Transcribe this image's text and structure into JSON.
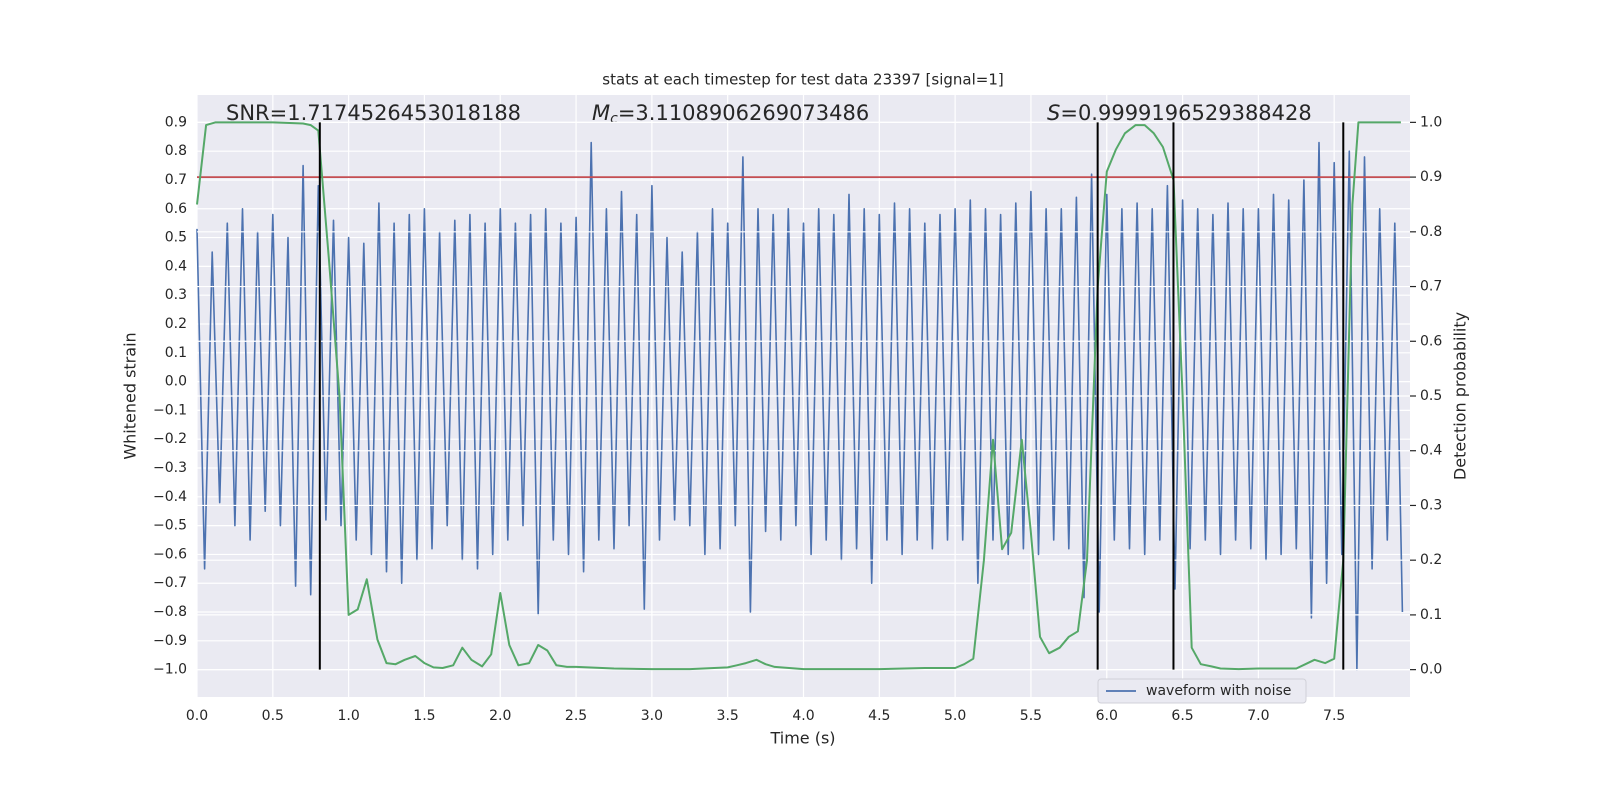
{
  "chart_data": {
    "type": "line",
    "title": "stats at each timestep for test data 23397 [signal=1]",
    "xlabel": "Time (s)",
    "ylabel": "Whitened strain",
    "y2label": "Detection probability",
    "annotations": {
      "snr": "SNR=1.7174526453018188",
      "mc": {
        "symbol": "M",
        "subscript": "c",
        "text": "=3.1108906269073486"
      },
      "s": {
        "symbol": "S",
        "text": "=0.9999196529388428"
      }
    },
    "xlim": [
      0,
      8
    ],
    "xticks": [
      {
        "value": 0,
        "label": "0.0"
      },
      0.5,
      {
        "value": 1,
        "label": "1.0"
      },
      1.5,
      {
        "value": 2,
        "label": "2.0"
      },
      2.5,
      {
        "value": 3,
        "label": "3.0"
      },
      3.5,
      {
        "value": 4,
        "label": "4.0"
      },
      4.5,
      {
        "value": 5,
        "label": "5.0"
      },
      5.5,
      {
        "value": 6,
        "label": "6.0"
      },
      6.5,
      {
        "value": 7,
        "label": "7.0"
      },
      7.5
    ],
    "ylim": [
      -1.095,
      0.995
    ],
    "yticks": [
      {
        "value": -1.0,
        "label": "−1.0"
      },
      {
        "value": -0.9,
        "label": "−0.9"
      },
      {
        "value": -0.8,
        "label": "−0.8"
      },
      {
        "value": -0.7,
        "label": "−0.7"
      },
      {
        "value": -0.6,
        "label": "−0.6"
      },
      {
        "value": -0.5,
        "label": "−0.5"
      },
      {
        "value": -0.4,
        "label": "−0.4"
      },
      {
        "value": -0.3,
        "label": "−0.3"
      },
      {
        "value": -0.2,
        "label": "−0.2"
      },
      {
        "value": -0.1,
        "label": "−0.1"
      },
      {
        "value": 0,
        "label": "0.0"
      },
      0.1,
      0.2,
      0.3,
      0.4,
      0.5,
      0.6,
      0.7,
      0.8,
      0.9
    ],
    "y2lim": [
      -0.05,
      1.05
    ],
    "y2ticks": [
      {
        "value": 0,
        "label": "0.0"
      },
      0.1,
      0.2,
      0.3,
      0.4,
      0.5,
      0.6,
      0.7,
      0.8,
      0.9,
      {
        "value": 1,
        "label": "1.0"
      }
    ],
    "grid": true,
    "legend": "lower right",
    "series": [
      {
        "name": "waveform with noise",
        "color": "#4c72b0",
        "x": [
          0,
          0.05,
          0.1,
          0.15,
          0.2,
          0.25,
          0.3,
          0.35,
          0.4,
          0.45,
          0.5,
          0.55,
          0.6,
          0.65,
          0.7,
          0.75,
          0.8,
          0.85,
          0.9,
          0.95,
          1,
          1.05,
          1.1,
          1.15,
          1.2,
          1.25,
          1.3,
          1.35,
          1.4,
          1.45,
          1.5,
          1.55,
          1.6,
          1.65,
          1.7,
          1.75,
          1.8,
          1.85,
          1.9,
          1.95,
          2,
          2.05,
          2.1,
          2.15,
          2.2,
          2.25,
          2.3,
          2.35,
          2.4,
          2.45,
          2.5,
          2.55,
          2.6,
          2.65,
          2.7,
          2.75,
          2.8,
          2.85,
          2.9,
          2.95,
          3,
          3.05,
          3.1,
          3.15,
          3.2,
          3.25,
          3.3,
          3.35,
          3.4,
          3.45,
          3.5,
          3.55,
          3.6,
          3.65,
          3.7,
          3.75,
          3.8,
          3.85,
          3.9,
          3.95,
          4,
          4.05,
          4.1,
          4.15,
          4.2,
          4.25,
          4.3,
          4.35,
          4.4,
          4.45,
          4.5,
          4.55,
          4.6,
          4.65,
          4.7,
          4.75,
          4.8,
          4.85,
          4.9,
          4.95,
          5,
          5.05,
          5.1,
          5.15,
          5.2,
          5.25,
          5.3,
          5.35,
          5.4,
          5.45,
          5.5,
          5.55,
          5.6,
          5.65,
          5.7,
          5.75,
          5.8,
          5.85,
          5.9,
          5.95,
          6,
          6.05,
          6.1,
          6.15,
          6.2,
          6.25,
          6.3,
          6.35,
          6.4,
          6.45,
          6.5,
          6.55,
          6.6,
          6.65,
          6.7,
          6.75,
          6.8,
          6.85,
          6.9,
          6.95,
          7,
          7.05,
          7.1,
          7.15,
          7.2,
          7.25,
          7.3,
          7.35,
          7.4,
          7.45,
          7.5,
          7.55,
          7.6,
          7.65,
          7.7,
          7.75,
          7.8,
          7.85,
          7.9,
          7.95
        ],
        "values": [
          0.53,
          -0.65,
          0.45,
          -0.42,
          0.55,
          -0.5,
          0.6,
          -0.55,
          0.52,
          -0.45,
          0.58,
          -0.5,
          0.5,
          -0.71,
          0.75,
          -0.74,
          0.68,
          -0.48,
          0.56,
          -0.5,
          0.5,
          -0.55,
          0.48,
          -0.6,
          0.62,
          -0.66,
          0.55,
          -0.7,
          0.58,
          -0.62,
          0.6,
          -0.58,
          0.52,
          -0.5,
          0.56,
          -0.62,
          0.58,
          -0.65,
          0.55,
          -0.6,
          0.6,
          -0.55,
          0.55,
          -0.5,
          0.58,
          -0.81,
          0.6,
          -0.55,
          0.55,
          -0.6,
          0.57,
          -0.66,
          0.83,
          -0.55,
          0.6,
          -0.58,
          0.66,
          -0.5,
          0.58,
          -0.79,
          0.68,
          -0.55,
          0.5,
          -0.48,
          0.45,
          -0.5,
          0.52,
          -0.6,
          0.6,
          -0.58,
          0.55,
          -0.5,
          0.78,
          -0.8,
          0.6,
          -0.52,
          0.58,
          -0.55,
          0.6,
          -0.5,
          0.55,
          -0.6,
          0.6,
          -0.55,
          0.58,
          -0.62,
          0.65,
          -0.58,
          0.6,
          -0.7,
          0.58,
          -0.55,
          0.62,
          -0.6,
          0.6,
          -0.55,
          0.55,
          -0.58,
          0.58,
          -0.55,
          0.6,
          -0.55,
          0.63,
          -0.7,
          0.6,
          -0.55,
          0.58,
          -0.6,
          0.62,
          -0.58,
          0.66,
          -0.6,
          0.6,
          -0.55,
          0.6,
          -0.58,
          0.64,
          -0.75,
          0.72,
          -0.8,
          0.65,
          -0.55,
          0.6,
          -0.58,
          0.62,
          -0.6,
          0.6,
          -0.55,
          0.68,
          -0.72,
          0.63,
          -0.58,
          0.6,
          -0.55,
          0.58,
          -0.6,
          0.62,
          -0.55,
          0.6,
          -0.58,
          0.6,
          -0.62,
          0.65,
          -0.6,
          0.63,
          -0.58,
          0.7,
          -0.82,
          0.83,
          -0.7,
          0.76,
          -0.6,
          0.8,
          -1.0,
          0.78,
          -0.65,
          0.6,
          -0.55,
          0.55,
          -0.8
        ]
      },
      {
        "color": "#55a868",
        "axis": "y2",
        "x": [
          0,
          0.06,
          0.12,
          0.5,
          0.7,
          0.75,
          0.8,
          0.87,
          0.94,
          1,
          1.06,
          1.12,
          1.19,
          1.25,
          1.31,
          1.37,
          1.44,
          1.5,
          1.56,
          1.62,
          1.69,
          1.75,
          1.81,
          1.88,
          1.94,
          2,
          2.06,
          2.12,
          2.19,
          2.25,
          2.31,
          2.37,
          2.44,
          2.5,
          2.75,
          3,
          3.25,
          3.5,
          3.56,
          3.62,
          3.69,
          3.75,
          3.81,
          4,
          4.5,
          4.8,
          5,
          5.06,
          5.12,
          5.19,
          5.25,
          5.31,
          5.37,
          5.44,
          5.5,
          5.56,
          5.62,
          5.69,
          5.75,
          5.81,
          5.87,
          5.94,
          6,
          6.06,
          6.12,
          6.19,
          6.25,
          6.31,
          6.37,
          6.44,
          6.5,
          6.56,
          6.62,
          6.69,
          6.75,
          6.87,
          7,
          7.25,
          7.31,
          7.37,
          7.44,
          7.5,
          7.56,
          7.62,
          7.66,
          7.75,
          7.94
        ],
        "values": [
          0.85,
          0.995,
          1.0,
          1.0,
          0.998,
          0.995,
          0.985,
          0.75,
          0.5,
          0.1,
          0.11,
          0.165,
          0.055,
          0.012,
          0.01,
          0.018,
          0.025,
          0.012,
          0.004,
          0.003,
          0.008,
          0.04,
          0.018,
          0.006,
          0.028,
          0.14,
          0.045,
          0.008,
          0.012,
          0.045,
          0.035,
          0.008,
          0.005,
          0.005,
          0.002,
          0.001,
          0.001,
          0.004,
          0.008,
          0.012,
          0.018,
          0.01,
          0.005,
          0.001,
          0.001,
          0.003,
          0.003,
          0.01,
          0.02,
          0.2,
          0.42,
          0.22,
          0.25,
          0.42,
          0.25,
          0.06,
          0.03,
          0.04,
          0.06,
          0.07,
          0.2,
          0.7,
          0.91,
          0.95,
          0.98,
          0.995,
          0.995,
          0.98,
          0.955,
          0.895,
          0.5,
          0.04,
          0.01,
          0.006,
          0.002,
          0.001,
          0.002,
          0.002,
          0.01,
          0.018,
          0.012,
          0.02,
          0.2,
          0.85,
          1.0,
          1.0,
          1.0
        ]
      }
    ],
    "threshold": {
      "value": 0.9,
      "axis": "y2",
      "color": "#c44e52"
    },
    "vlines": {
      "x": [
        0.81,
        5.94,
        6.44,
        7.56
      ],
      "ymin": -1.0,
      "ymax": 0.9,
      "color": "#000000"
    }
  }
}
